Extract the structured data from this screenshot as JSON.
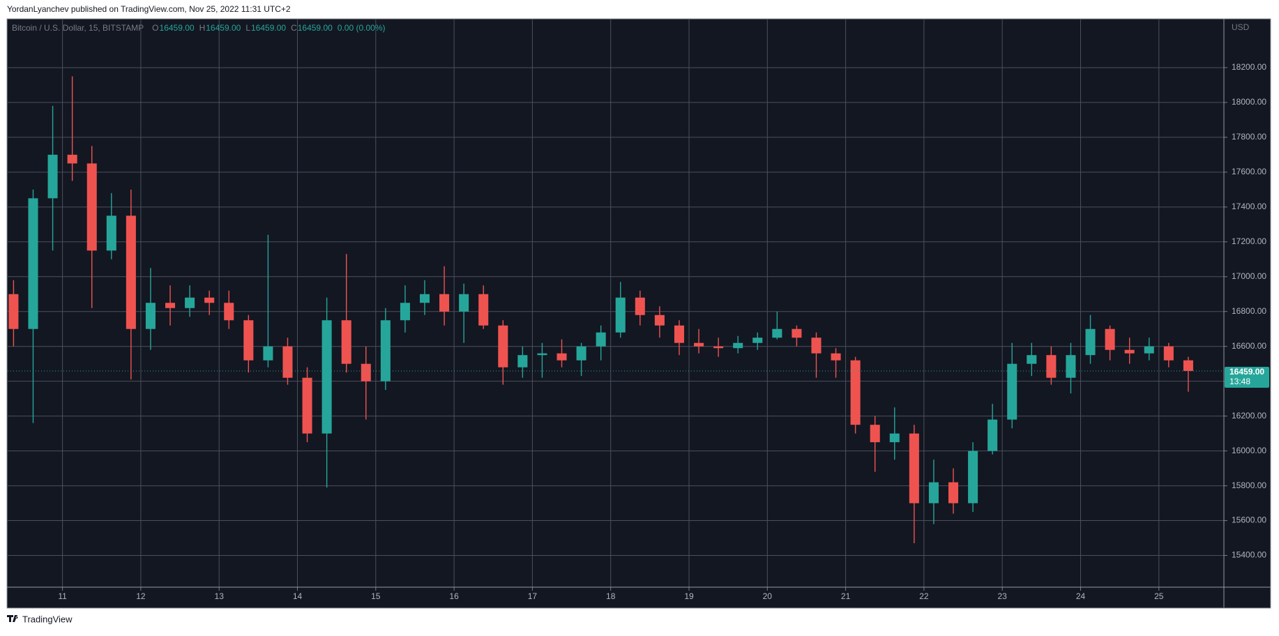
{
  "header": "YordanLyanchev published on TradingView.com, Nov 25, 2022 11:31 UTC+2",
  "footer": "TradingView",
  "chart_data": {
    "type": "candlestick",
    "legend": {
      "symbol": "Bitcoin / U.S. Dollar, 15, BITSTAMP",
      "items": [
        {
          "key": "O",
          "value": "16459.00"
        },
        {
          "key": "H",
          "value": "16459.00"
        },
        {
          "key": "L",
          "value": "16459.00"
        },
        {
          "key": "C",
          "value": "16459.00"
        }
      ],
      "change": "0.00 (0.00%)"
    },
    "currency": "USD",
    "up_color": "#26a69a",
    "down_color": "#ef5350",
    "grid": true,
    "xlim": [
      10.3,
      25.83
    ],
    "xticks": [
      11,
      12,
      13,
      14,
      15,
      16,
      17,
      18,
      19,
      20,
      21,
      22,
      23,
      24,
      25
    ],
    "ylim": [
      15218,
      18476
    ],
    "yticks": [
      {
        "value": 15400,
        "label": "15400.00"
      },
      {
        "value": 15600,
        "label": "15600.00"
      },
      {
        "value": 15800,
        "label": "15800.00"
      },
      {
        "value": 16000,
        "label": "16000.00"
      },
      {
        "value": 16200,
        "label": "16200.00"
      },
      {
        "value": 16400,
        "label": "16400.00"
      },
      {
        "value": 16600,
        "label": "16600.00"
      },
      {
        "value": 16800,
        "label": "16800.00"
      },
      {
        "value": 17000,
        "label": "17000.00"
      },
      {
        "value": 17200,
        "label": "17200.00"
      },
      {
        "value": 17400,
        "label": "17400.00"
      },
      {
        "value": 17600,
        "label": "17600.00"
      },
      {
        "value": 17800,
        "label": "17800.00"
      },
      {
        "value": 18000,
        "label": "18000.00"
      },
      {
        "value": 18200,
        "label": "18200.00"
      }
    ],
    "last_price": {
      "value": 16459,
      "label": "16459.00",
      "countdown": "13:48"
    },
    "x": [
      10.375,
      10.625,
      10.875,
      11.125,
      11.375,
      11.625,
      11.875,
      12.125,
      12.375,
      12.625,
      12.875,
      13.125,
      13.375,
      13.625,
      13.875,
      14.125,
      14.375,
      14.625,
      14.875,
      15.125,
      15.375,
      15.625,
      15.875,
      16.125,
      16.375,
      16.625,
      16.875,
      17.125,
      17.375,
      17.625,
      17.875,
      18.125,
      18.375,
      18.625,
      18.875,
      19.125,
      19.375,
      19.625,
      19.875,
      20.125,
      20.375,
      20.625,
      20.875,
      21.125,
      21.375,
      21.625,
      21.875,
      22.125,
      22.375,
      22.625,
      22.875,
      23.125,
      23.375,
      23.625,
      23.875,
      24.125,
      24.375,
      24.625,
      24.875,
      25.125,
      25.375
    ],
    "open": [
      16900,
      16700,
      17450,
      17700,
      17650,
      17150,
      17350,
      16700,
      16850,
      16820,
      16880,
      16850,
      16750,
      16520,
      16600,
      16420,
      16100,
      16750,
      16500,
      16400,
      16750,
      16850,
      16900,
      16800,
      16900,
      16720,
      16480,
      16550,
      16560,
      16520,
      16600,
      16680,
      16880,
      16780,
      16720,
      16620,
      16600,
      16590,
      16620,
      16650,
      16700,
      16650,
      16560,
      16520,
      16150,
      16050,
      16100,
      15700,
      15820,
      15700,
      16000,
      16180,
      16500,
      16550,
      16420,
      16550,
      16700,
      16580,
      16560,
      16600,
      16520
    ],
    "high": [
      16980,
      17500,
      17980,
      18150,
      17750,
      17480,
      17500,
      17050,
      16950,
      16950,
      16920,
      16920,
      16780,
      17240,
      16650,
      16480,
      16880,
      17130,
      16600,
      16820,
      16950,
      16980,
      17060,
      16960,
      16950,
      16750,
      16600,
      16620,
      16640,
      16620,
      16720,
      16970,
      16920,
      16830,
      16750,
      16700,
      16650,
      16660,
      16680,
      16800,
      16720,
      16680,
      16590,
      16540,
      16200,
      16250,
      16150,
      15950,
      15900,
      16050,
      16270,
      16620,
      16620,
      16600,
      16620,
      16780,
      16720,
      16650,
      16650,
      16620,
      16540
    ],
    "low": [
      16600,
      16160,
      17150,
      17550,
      16820,
      17100,
      16410,
      16580,
      16720,
      16770,
      16780,
      16700,
      16450,
      16480,
      16380,
      16050,
      15790,
      16450,
      16180,
      16350,
      16680,
      16780,
      16720,
      16620,
      16700,
      16380,
      16420,
      16420,
      16480,
      16430,
      16520,
      16650,
      16720,
      16650,
      16550,
      16560,
      16540,
      16560,
      16580,
      16640,
      16600,
      16420,
      16420,
      16100,
      15880,
      15950,
      15470,
      15580,
      15640,
      15650,
      15980,
      16130,
      16430,
      16380,
      16330,
      16500,
      16520,
      16500,
      16520,
      16480,
      16340
    ],
    "close": [
      16700,
      17450,
      17700,
      17650,
      17150,
      17350,
      16700,
      16850,
      16820,
      16880,
      16850,
      16750,
      16520,
      16600,
      16420,
      16100,
      16750,
      16500,
      16400,
      16750,
      16850,
      16900,
      16800,
      16900,
      16720,
      16480,
      16550,
      16560,
      16520,
      16600,
      16680,
      16880,
      16780,
      16720,
      16620,
      16600,
      16590,
      16620,
      16650,
      16700,
      16650,
      16560,
      16520,
      16150,
      16050,
      16100,
      15700,
      15820,
      15700,
      16000,
      16180,
      16500,
      16550,
      16420,
      16550,
      16700,
      16580,
      16560,
      16600,
      16520,
      16459
    ]
  }
}
